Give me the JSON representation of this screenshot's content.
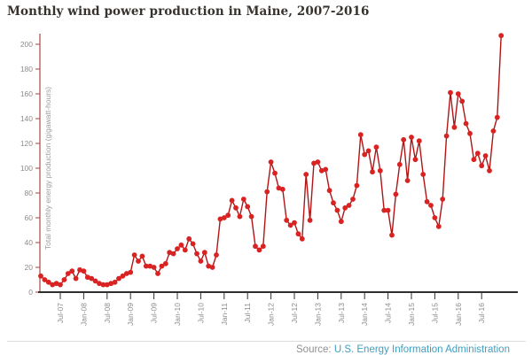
{
  "title": "Monthly wind power production in Maine, 2007-2016",
  "source": {
    "prefix": "Source: ",
    "link_text": "U.S. Energy Information Administration"
  },
  "colors": {
    "title_text": "#37322d",
    "point": "#d82322",
    "line": "#b01515",
    "y_axis": "#b2605c",
    "x_axis": "#2f2f2f",
    "tick_text": "#8b8b8b",
    "y_label_text": "#9c9c9c",
    "source_text": "#8f8f8f",
    "source_link": "#3f9fc0",
    "divider": "#dcdcdc",
    "background": "#ffffff"
  },
  "chart_data": {
    "type": "line",
    "title": "Monthly wind power production in Maine, 2007-2016",
    "xlabel": "",
    "ylabel": "Total monthly energy production (gigawatt-hours)",
    "frequency": "monthly",
    "x_start": "Feb-2007",
    "x_end": "Dec-2016",
    "ylim": [
      0,
      210
    ],
    "yticks": [
      0,
      20,
      40,
      60,
      80,
      100,
      120,
      140,
      160,
      180,
      200
    ],
    "x_tick_labels": [
      "Jul-07",
      "Jan-08",
      "Jul-08",
      "Jan-09",
      "Jul-09",
      "Jan-10",
      "Jul-10",
      "Jan-11",
      "Jul-11",
      "Jan-12",
      "Jul-12",
      "Jan-13",
      "Jul-13",
      "Jan-14",
      "Jul-14",
      "Jan-15",
      "Jul-15",
      "Jan-16",
      "Jul-16"
    ],
    "x_tick_label_rotation_deg": -90,
    "grid": false,
    "legend": "none",
    "marker": "circle",
    "series": [
      {
        "name": "Maine monthly wind power production (gigawatt-hours)",
        "values": [
          13,
          10,
          8,
          6,
          7,
          6,
          10,
          15,
          17,
          11,
          18,
          17,
          12,
          11,
          9,
          7,
          6,
          6,
          7,
          8,
          11,
          13,
          15,
          16,
          30,
          25,
          29,
          21,
          21,
          20,
          15,
          21,
          23,
          32,
          31,
          35,
          38,
          34,
          43,
          39,
          31,
          25,
          32,
          21,
          20,
          30,
          59,
          60,
          62,
          74,
          68,
          61,
          75,
          69,
          61,
          37,
          34,
          37,
          81,
          105,
          96,
          84,
          83,
          58,
          54,
          56,
          47,
          43,
          95,
          58,
          104,
          105,
          98,
          99,
          82,
          72,
          66,
          57,
          68,
          70,
          75,
          86,
          127,
          111,
          114,
          97,
          117,
          98,
          66,
          66,
          46,
          79,
          103,
          123,
          90,
          125,
          107,
          122,
          95,
          73,
          70,
          60,
          53,
          75,
          126,
          161,
          133,
          160,
          154,
          136,
          128,
          107,
          112,
          102,
          110,
          98,
          130,
          141,
          207
        ]
      }
    ]
  }
}
